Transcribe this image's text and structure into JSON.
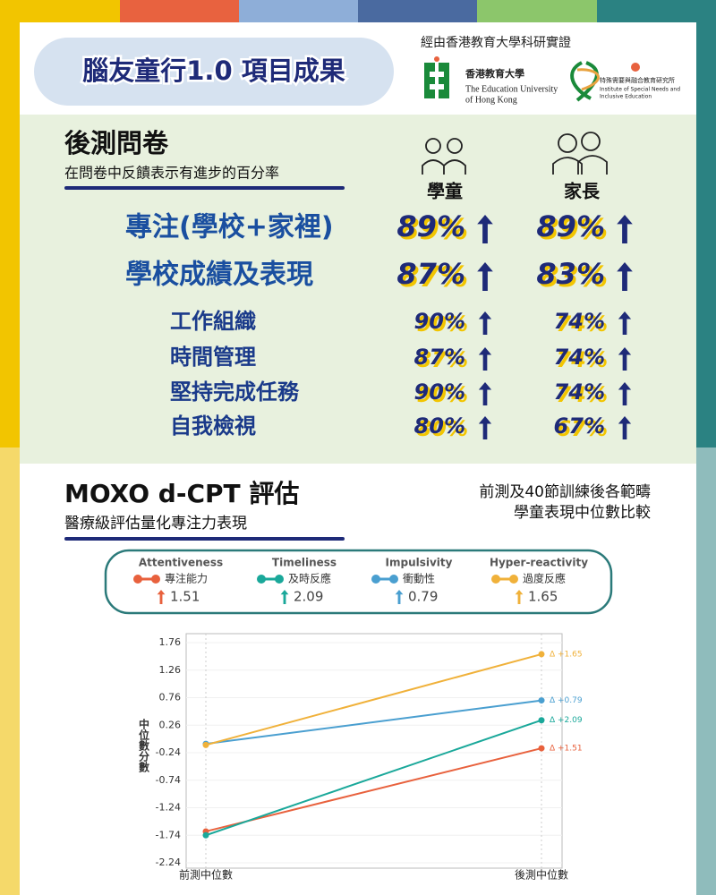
{
  "header": {
    "title": "腦友童行1.0 項目成果",
    "endorsement": "經由香港教育大學科研實證",
    "logos": [
      {
        "name": "香港教育大學",
        "lines": [
          "The Education University",
          "of Hong Kong"
        ]
      },
      {
        "name": "特殊需要與融合教育研究所",
        "lines": [
          "Institute of Special Needs and",
          "Inclusive Education"
        ]
      }
    ]
  },
  "survey": {
    "title": "後測問卷",
    "subtitle": "在問卷中反饋表示有進步的百分率",
    "columns": [
      "學童",
      "家長"
    ],
    "rows": [
      {
        "label": "專注(學校+家裡)",
        "values": [
          "89%",
          "89%"
        ]
      },
      {
        "label": "學校成績及表現",
        "values": [
          "87%",
          "83%"
        ]
      },
      {
        "label": "工作組織",
        "values": [
          "90%",
          "74%"
        ]
      },
      {
        "label": "時間管理",
        "values": [
          "87%",
          "74%"
        ]
      },
      {
        "label": "堅持完成任務",
        "values": [
          "90%",
          "74%"
        ]
      },
      {
        "label": "自我檢視",
        "values": [
          "80%",
          "67%"
        ]
      }
    ]
  },
  "moxo": {
    "title": "MOXO d-CPT 評估",
    "subtitle": "醫療級評估量化專注力表現",
    "note": [
      "前測及40節訓練後各範疇",
      "學童表現中位數比較"
    ]
  },
  "chart_data": {
    "type": "line",
    "y_label": "中位數分數",
    "categories": [
      "前測中位數",
      "後測中位數"
    ],
    "ylim": [
      -2.24,
      1.76
    ],
    "yticks": [
      1.76,
      1.26,
      0.76,
      0.26,
      -0.24,
      -0.74,
      -1.24,
      -1.74,
      -2.24
    ],
    "grid": true,
    "series": [
      {
        "name": "Attentiveness",
        "name_zh": "專注能力",
        "color": "#e8613d",
        "values": [
          -1.67,
          -0.16
        ],
        "change_label": "1.51",
        "delta_label": "Δ +1.51"
      },
      {
        "name": "Timeliness",
        "name_zh": "及時反應",
        "color": "#1aa89a",
        "values": [
          -1.74,
          0.35
        ],
        "change_label": "2.09",
        "delta_label": "Δ +2.09"
      },
      {
        "name": "Impulsivity",
        "name_zh": "衝動性",
        "color": "#4a9fd0",
        "values": [
          -0.08,
          0.71
        ],
        "change_label": "0.79",
        "delta_label": "Δ +0.79"
      },
      {
        "name": "Hyper-reactivity",
        "name_zh": "過度反應",
        "color": "#f0b13a",
        "values": [
          -0.1,
          1.55
        ],
        "change_label": "1.65",
        "delta_label": "Δ +1.65"
      }
    ]
  }
}
